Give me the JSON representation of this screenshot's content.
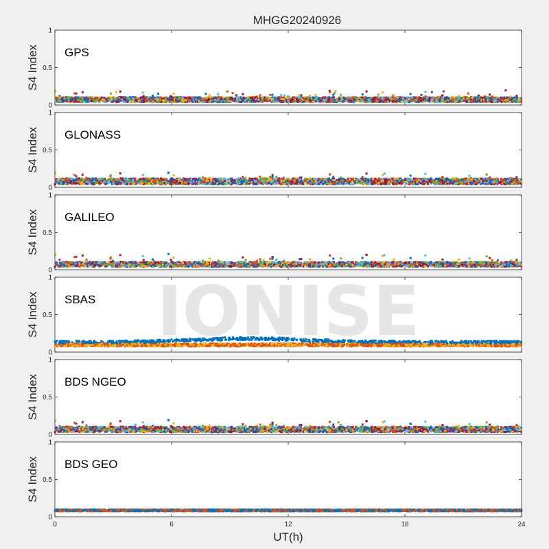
{
  "figure": {
    "title": "MHGG20240926",
    "watermark": "IONISE",
    "background": "#f0f0f0"
  },
  "chart_data": {
    "type": "scatter",
    "title": "MHGG20240926",
    "xlabel": "UT(h)",
    "ylabel": "S4 Index",
    "xlim": [
      0,
      24
    ],
    "ylim": [
      0,
      1
    ],
    "xticks": [
      0,
      6,
      12,
      18,
      24
    ],
    "xtick_labels": [
      "0",
      "6",
      "12",
      "18",
      "24"
    ],
    "yticks": [
      0,
      0.5,
      1
    ],
    "ytick_labels": [
      "0",
      "0.5",
      "1"
    ],
    "grid": false,
    "series_colors": [
      "#0072BD",
      "#D95319",
      "#EDB120",
      "#7E2F8E",
      "#77AC30",
      "#4DBEEE",
      "#A2142F"
    ],
    "panels": [
      {
        "label": "GPS",
        "typical_s4": [
          0.04,
          0.12
        ],
        "max_s4": 0.22,
        "n_series": 7
      },
      {
        "label": "GLONASS",
        "typical_s4": [
          0.04,
          0.14
        ],
        "max_s4": 0.23,
        "n_series": 7
      },
      {
        "label": "GALILEO",
        "typical_s4": [
          0.04,
          0.12
        ],
        "max_s4": 0.24,
        "n_series": 7
      },
      {
        "label": "SBAS",
        "typical_s4": [
          0.08,
          0.2
        ],
        "max_s4": 0.25,
        "n_series": 3
      },
      {
        "label": "BDS NGEO",
        "typical_s4": [
          0.03,
          0.12
        ],
        "max_s4": 0.22,
        "n_series": 7
      },
      {
        "label": "BDS GEO",
        "typical_s4": [
          0.07,
          0.1
        ],
        "max_s4": 0.11,
        "n_series": 2
      }
    ]
  }
}
